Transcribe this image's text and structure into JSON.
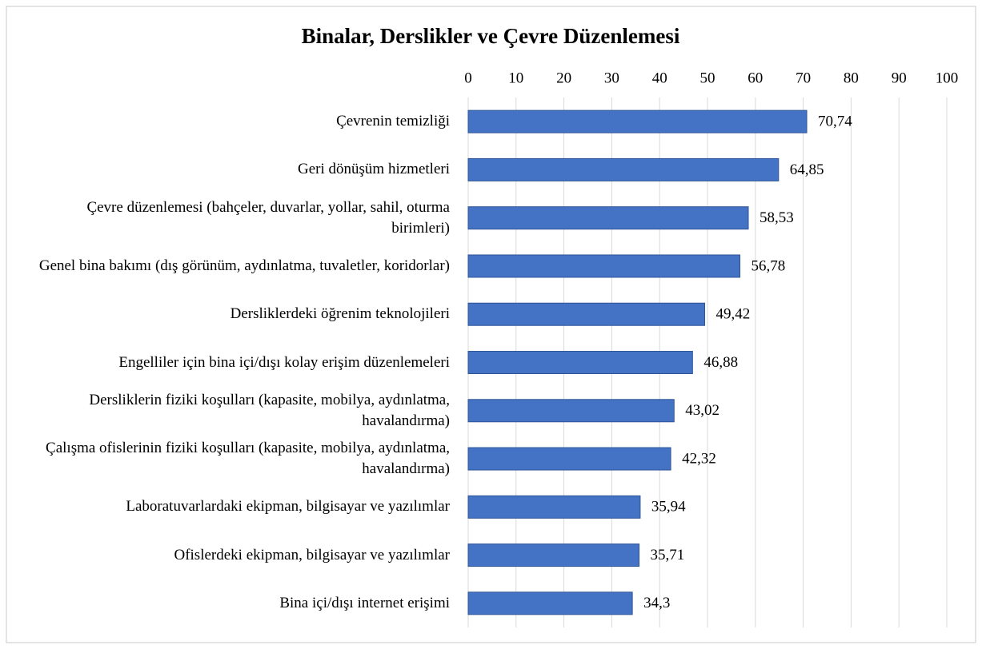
{
  "chart_data": {
    "type": "bar",
    "orientation": "horizontal",
    "title": "Binalar, Derslikler ve Çevre Düzenlemesi",
    "categories": [
      "Çevrenin temizliği",
      "Geri dönüşüm hizmetleri",
      "Çevre düzenlemesi (bahçeler, duvarlar, yollar, sahil, oturma birimleri)",
      "Genel bina bakımı (dış görünüm, aydınlatma, tuvaletler, koridorlar)",
      "Dersliklerdeki öğrenim teknolojileri",
      "Engelliler için bina içi/dışı kolay erişim düzenlemeleri",
      "Dersliklerin fiziki koşulları (kapasite, mobilya, aydınlatma, havalandırma)",
      "Çalışma ofislerinin fiziki koşulları (kapasite, mobilya, aydınlatma, havalandırma)",
      "Laboratuvarlardaki ekipman, bilgisayar ve yazılımlar",
      "Ofislerdeki ekipman, bilgisayar ve yazılımlar",
      "Bina içi/dışı internet erişimi"
    ],
    "values": [
      70.74,
      64.85,
      58.53,
      56.78,
      49.42,
      46.88,
      43.02,
      42.32,
      35.94,
      35.71,
      34.3
    ],
    "value_labels": [
      "70,74",
      "64,85",
      "58,53",
      "56,78",
      "49,42",
      "46,88",
      "43,02",
      "42,32",
      "35,94",
      "35,71",
      "34,3"
    ],
    "color": "#4472c4",
    "xlim": [
      0,
      100
    ],
    "xticks": [
      0,
      10,
      20,
      30,
      40,
      50,
      60,
      70,
      80,
      90,
      100
    ],
    "grid": true
  }
}
